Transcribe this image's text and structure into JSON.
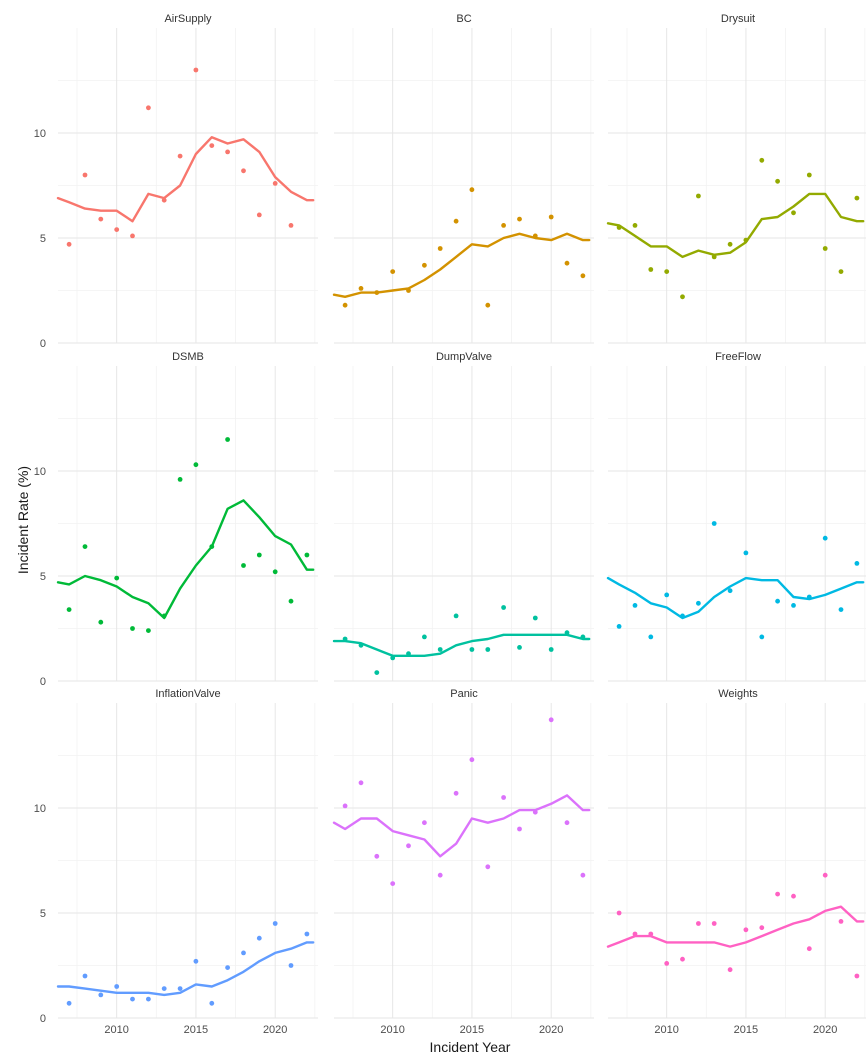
{
  "chart_data": {
    "type": "line",
    "xlabel": "Incident Year",
    "ylabel": "Incident Rate (%)",
    "xlim": [
      2006.3,
      2022.7
    ],
    "ylim": [
      0,
      15
    ],
    "x_ticks": [
      2010,
      2015,
      2020
    ],
    "y_ticks": [
      0,
      5,
      10
    ],
    "grid": true,
    "legend": "none",
    "panels": [
      {
        "name": "AirSupply",
        "color": "#F8766D",
        "points": [
          [
            2007,
            4.7
          ],
          [
            2008,
            8.0
          ],
          [
            2009,
            5.9
          ],
          [
            2010,
            5.4
          ],
          [
            2011,
            5.1
          ],
          [
            2012,
            11.2
          ],
          [
            2013,
            6.8
          ],
          [
            2014,
            8.9
          ],
          [
            2015,
            13.0
          ],
          [
            2016,
            9.4
          ],
          [
            2017,
            9.1
          ],
          [
            2018,
            8.2
          ],
          [
            2019,
            6.1
          ],
          [
            2020,
            7.6
          ],
          [
            2021,
            5.6
          ]
        ],
        "trend": [
          [
            2006.3,
            6.9
          ],
          [
            2007,
            6.7
          ],
          [
            2008,
            6.4
          ],
          [
            2009,
            6.3
          ],
          [
            2010,
            6.3
          ],
          [
            2011,
            5.8
          ],
          [
            2012,
            7.1
          ],
          [
            2013,
            6.9
          ],
          [
            2014,
            7.5
          ],
          [
            2015,
            9.0
          ],
          [
            2016,
            9.8
          ],
          [
            2017,
            9.5
          ],
          [
            2018,
            9.7
          ],
          [
            2019,
            9.1
          ],
          [
            2020,
            7.9
          ],
          [
            2021,
            7.2
          ],
          [
            2022,
            6.8
          ],
          [
            2022.4,
            6.8
          ]
        ]
      },
      {
        "name": "BC",
        "color": "#D39200",
        "points": [
          [
            2007,
            1.8
          ],
          [
            2008,
            2.6
          ],
          [
            2009,
            2.4
          ],
          [
            2010,
            3.4
          ],
          [
            2011,
            2.5
          ],
          [
            2012,
            3.7
          ],
          [
            2013,
            4.5
          ],
          [
            2014,
            5.8
          ],
          [
            2015,
            7.3
          ],
          [
            2016,
            1.8
          ],
          [
            2017,
            5.6
          ],
          [
            2018,
            5.9
          ],
          [
            2019,
            5.1
          ],
          [
            2020,
            6.0
          ],
          [
            2021,
            3.8
          ],
          [
            2022,
            3.2
          ]
        ],
        "trend": [
          [
            2006.3,
            2.3
          ],
          [
            2007,
            2.2
          ],
          [
            2008,
            2.4
          ],
          [
            2009,
            2.4
          ],
          [
            2010,
            2.5
          ],
          [
            2011,
            2.6
          ],
          [
            2012,
            3.0
          ],
          [
            2013,
            3.5
          ],
          [
            2014,
            4.1
          ],
          [
            2015,
            4.7
          ],
          [
            2016,
            4.6
          ],
          [
            2017,
            5.0
          ],
          [
            2018,
            5.2
          ],
          [
            2019,
            5.0
          ],
          [
            2020,
            4.9
          ],
          [
            2021,
            5.2
          ],
          [
            2022,
            4.9
          ],
          [
            2022.4,
            4.9
          ]
        ]
      },
      {
        "name": "Drysuit",
        "color": "#93AA00",
        "points": [
          [
            2007,
            5.5
          ],
          [
            2008,
            5.6
          ],
          [
            2009,
            3.5
          ],
          [
            2010,
            3.4
          ],
          [
            2011,
            2.2
          ],
          [
            2012,
            7.0
          ],
          [
            2013,
            4.1
          ],
          [
            2014,
            4.7
          ],
          [
            2015,
            4.9
          ],
          [
            2016,
            8.7
          ],
          [
            2017,
            7.7
          ],
          [
            2018,
            6.2
          ],
          [
            2019,
            8.0
          ],
          [
            2020,
            4.5
          ],
          [
            2021,
            3.4
          ],
          [
            2022,
            6.9
          ]
        ],
        "trend": [
          [
            2006.3,
            5.7
          ],
          [
            2007,
            5.6
          ],
          [
            2008,
            5.1
          ],
          [
            2009,
            4.6
          ],
          [
            2010,
            4.6
          ],
          [
            2011,
            4.1
          ],
          [
            2012,
            4.4
          ],
          [
            2013,
            4.2
          ],
          [
            2014,
            4.3
          ],
          [
            2015,
            4.8
          ],
          [
            2016,
            5.9
          ],
          [
            2017,
            6.0
          ],
          [
            2018,
            6.5
          ],
          [
            2019,
            7.1
          ],
          [
            2020,
            7.1
          ],
          [
            2021,
            6.0
          ],
          [
            2022,
            5.8
          ],
          [
            2022.4,
            5.8
          ]
        ]
      },
      {
        "name": "DSMB",
        "color": "#00BA38",
        "points": [
          [
            2007,
            3.4
          ],
          [
            2008,
            6.4
          ],
          [
            2009,
            2.8
          ],
          [
            2010,
            4.9
          ],
          [
            2011,
            2.5
          ],
          [
            2012,
            2.4
          ],
          [
            2013,
            3.1
          ],
          [
            2014,
            9.6
          ],
          [
            2015,
            10.3
          ],
          [
            2016,
            6.4
          ],
          [
            2017,
            11.5
          ],
          [
            2018,
            5.5
          ],
          [
            2019,
            6.0
          ],
          [
            2020,
            5.2
          ],
          [
            2021,
            3.8
          ],
          [
            2022,
            6.0
          ]
        ],
        "trend": [
          [
            2006.3,
            4.7
          ],
          [
            2007,
            4.6
          ],
          [
            2008,
            5.0
          ],
          [
            2009,
            4.8
          ],
          [
            2010,
            4.5
          ],
          [
            2011,
            4.0
          ],
          [
            2012,
            3.7
          ],
          [
            2013,
            3.0
          ],
          [
            2014,
            4.4
          ],
          [
            2015,
            5.5
          ],
          [
            2016,
            6.4
          ],
          [
            2017,
            8.2
          ],
          [
            2018,
            8.6
          ],
          [
            2019,
            7.8
          ],
          [
            2020,
            6.9
          ],
          [
            2021,
            6.5
          ],
          [
            2022,
            5.3
          ],
          [
            2022.4,
            5.3
          ]
        ]
      },
      {
        "name": "DumpValve",
        "color": "#00C19F",
        "points": [
          [
            2007,
            2.0
          ],
          [
            2008,
            1.7
          ],
          [
            2009,
            0.4
          ],
          [
            2010,
            1.1
          ],
          [
            2011,
            1.3
          ],
          [
            2012,
            2.1
          ],
          [
            2013,
            1.5
          ],
          [
            2014,
            3.1
          ],
          [
            2015,
            1.5
          ],
          [
            2016,
            1.5
          ],
          [
            2017,
            3.5
          ],
          [
            2018,
            1.6
          ],
          [
            2019,
            3.0
          ],
          [
            2020,
            1.5
          ],
          [
            2021,
            2.3
          ],
          [
            2022,
            2.1
          ]
        ],
        "trend": [
          [
            2006.3,
            1.9
          ],
          [
            2007,
            1.9
          ],
          [
            2008,
            1.8
          ],
          [
            2009,
            1.5
          ],
          [
            2010,
            1.2
          ],
          [
            2011,
            1.2
          ],
          [
            2012,
            1.2
          ],
          [
            2013,
            1.3
          ],
          [
            2014,
            1.7
          ],
          [
            2015,
            1.9
          ],
          [
            2016,
            2.0
          ],
          [
            2017,
            2.2
          ],
          [
            2018,
            2.2
          ],
          [
            2019,
            2.2
          ],
          [
            2020,
            2.2
          ],
          [
            2021,
            2.2
          ],
          [
            2022,
            2.0
          ],
          [
            2022.4,
            2.0
          ]
        ]
      },
      {
        "name": "FreeFlow",
        "color": "#00B9E3",
        "points": [
          [
            2007,
            2.6
          ],
          [
            2008,
            3.6
          ],
          [
            2009,
            2.1
          ],
          [
            2010,
            4.1
          ],
          [
            2011,
            3.1
          ],
          [
            2012,
            3.7
          ],
          [
            2013,
            7.5
          ],
          [
            2014,
            4.3
          ],
          [
            2015,
            6.1
          ],
          [
            2016,
            2.1
          ],
          [
            2017,
            3.8
          ],
          [
            2018,
            3.6
          ],
          [
            2019,
            4.0
          ],
          [
            2020,
            6.8
          ],
          [
            2021,
            3.4
          ],
          [
            2022,
            5.6
          ]
        ],
        "trend": [
          [
            2006.3,
            4.9
          ],
          [
            2007,
            4.6
          ],
          [
            2008,
            4.2
          ],
          [
            2009,
            3.7
          ],
          [
            2010,
            3.5
          ],
          [
            2011,
            3.0
          ],
          [
            2012,
            3.3
          ],
          [
            2013,
            4.0
          ],
          [
            2014,
            4.5
          ],
          [
            2015,
            4.9
          ],
          [
            2016,
            4.8
          ],
          [
            2017,
            4.8
          ],
          [
            2018,
            4.0
          ],
          [
            2019,
            3.9
          ],
          [
            2020,
            4.1
          ],
          [
            2021,
            4.4
          ],
          [
            2022,
            4.7
          ],
          [
            2022.4,
            4.7
          ]
        ]
      },
      {
        "name": "InflationValve",
        "color": "#619CFF",
        "points": [
          [
            2007,
            0.7
          ],
          [
            2008,
            2.0
          ],
          [
            2009,
            1.1
          ],
          [
            2010,
            1.5
          ],
          [
            2011,
            0.9
          ],
          [
            2012,
            0.9
          ],
          [
            2013,
            1.4
          ],
          [
            2014,
            1.4
          ],
          [
            2015,
            2.7
          ],
          [
            2016,
            0.7
          ],
          [
            2017,
            2.4
          ],
          [
            2018,
            3.1
          ],
          [
            2019,
            3.8
          ],
          [
            2020,
            4.5
          ],
          [
            2021,
            2.5
          ],
          [
            2022,
            4.0
          ]
        ],
        "trend": [
          [
            2006.3,
            1.5
          ],
          [
            2007,
            1.5
          ],
          [
            2008,
            1.4
          ],
          [
            2009,
            1.3
          ],
          [
            2010,
            1.2
          ],
          [
            2011,
            1.2
          ],
          [
            2012,
            1.2
          ],
          [
            2013,
            1.1
          ],
          [
            2014,
            1.2
          ],
          [
            2015,
            1.6
          ],
          [
            2016,
            1.5
          ],
          [
            2017,
            1.8
          ],
          [
            2018,
            2.2
          ],
          [
            2019,
            2.7
          ],
          [
            2020,
            3.1
          ],
          [
            2021,
            3.3
          ],
          [
            2022,
            3.6
          ],
          [
            2022.4,
            3.6
          ]
        ]
      },
      {
        "name": "Panic",
        "color": "#DB72FB",
        "points": [
          [
            2007,
            10.1
          ],
          [
            2008,
            11.2
          ],
          [
            2009,
            7.7
          ],
          [
            2010,
            6.4
          ],
          [
            2011,
            8.2
          ],
          [
            2012,
            9.3
          ],
          [
            2013,
            6.8
          ],
          [
            2014,
            10.7
          ],
          [
            2015,
            12.3
          ],
          [
            2016,
            7.2
          ],
          [
            2017,
            10.5
          ],
          [
            2018,
            9.0
          ],
          [
            2019,
            9.8
          ],
          [
            2020,
            14.2
          ],
          [
            2021,
            9.3
          ],
          [
            2022,
            6.8
          ]
        ],
        "trend": [
          [
            2006.3,
            9.3
          ],
          [
            2007,
            9.0
          ],
          [
            2008,
            9.5
          ],
          [
            2009,
            9.5
          ],
          [
            2010,
            8.9
          ],
          [
            2011,
            8.7
          ],
          [
            2012,
            8.5
          ],
          [
            2013,
            7.7
          ],
          [
            2014,
            8.3
          ],
          [
            2015,
            9.5
          ],
          [
            2016,
            9.3
          ],
          [
            2017,
            9.5
          ],
          [
            2018,
            9.9
          ],
          [
            2019,
            9.9
          ],
          [
            2020,
            10.2
          ],
          [
            2021,
            10.6
          ],
          [
            2022,
            9.9
          ],
          [
            2022.4,
            9.9
          ]
        ]
      },
      {
        "name": "Weights",
        "color": "#FF61C3",
        "points": [
          [
            2007,
            5.0
          ],
          [
            2008,
            4.0
          ],
          [
            2009,
            4.0
          ],
          [
            2010,
            2.6
          ],
          [
            2011,
            2.8
          ],
          [
            2012,
            4.5
          ],
          [
            2013,
            4.5
          ],
          [
            2014,
            2.3
          ],
          [
            2015,
            4.2
          ],
          [
            2016,
            4.3
          ],
          [
            2017,
            5.9
          ],
          [
            2018,
            5.8
          ],
          [
            2019,
            3.3
          ],
          [
            2020,
            6.8
          ],
          [
            2021,
            4.6
          ],
          [
            2022,
            2.0
          ]
        ],
        "trend": [
          [
            2006.3,
            3.4
          ],
          [
            2007,
            3.6
          ],
          [
            2008,
            3.9
          ],
          [
            2009,
            3.9
          ],
          [
            2010,
            3.6
          ],
          [
            2011,
            3.6
          ],
          [
            2012,
            3.6
          ],
          [
            2013,
            3.6
          ],
          [
            2014,
            3.4
          ],
          [
            2015,
            3.6
          ],
          [
            2016,
            3.9
          ],
          [
            2017,
            4.2
          ],
          [
            2018,
            4.5
          ],
          [
            2019,
            4.7
          ],
          [
            2020,
            5.1
          ],
          [
            2021,
            5.3
          ],
          [
            2022,
            4.6
          ],
          [
            2022.4,
            4.6
          ]
        ]
      }
    ]
  }
}
